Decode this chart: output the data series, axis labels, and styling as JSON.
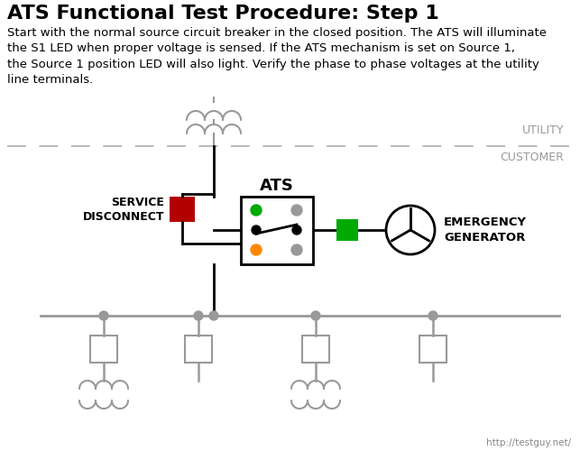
{
  "title": "ATS Functional Test Procedure: Step 1",
  "subtitle": "Start with the normal source circuit breaker in the closed position. The ATS will illuminate\nthe S1 LED when proper voltage is sensed. If the ATS mechanism is set on Source 1,\nthe Source 1 position LED will also light. Verify the phase to phase voltages at the utility\nline terminals.",
  "utility_label": "UTILITY",
  "customer_label": "CUSTOMER",
  "service_disconnect_label": "SERVICE\nDISCONNECT",
  "ats_label": "ATS",
  "emergency_gen_label": "EMERGENCY\nGENERATOR",
  "url_label": "http://testguy.net/",
  "bg_color": "#ffffff",
  "line_color": "#000000",
  "gray_color": "#999999",
  "dashed_color": "#bbbbbb",
  "red_color": "#b30000",
  "green_color": "#00aa00",
  "orange_color": "#ff8800",
  "title_fontsize": 16,
  "body_fontsize": 9.5,
  "label_fontsize": 10
}
